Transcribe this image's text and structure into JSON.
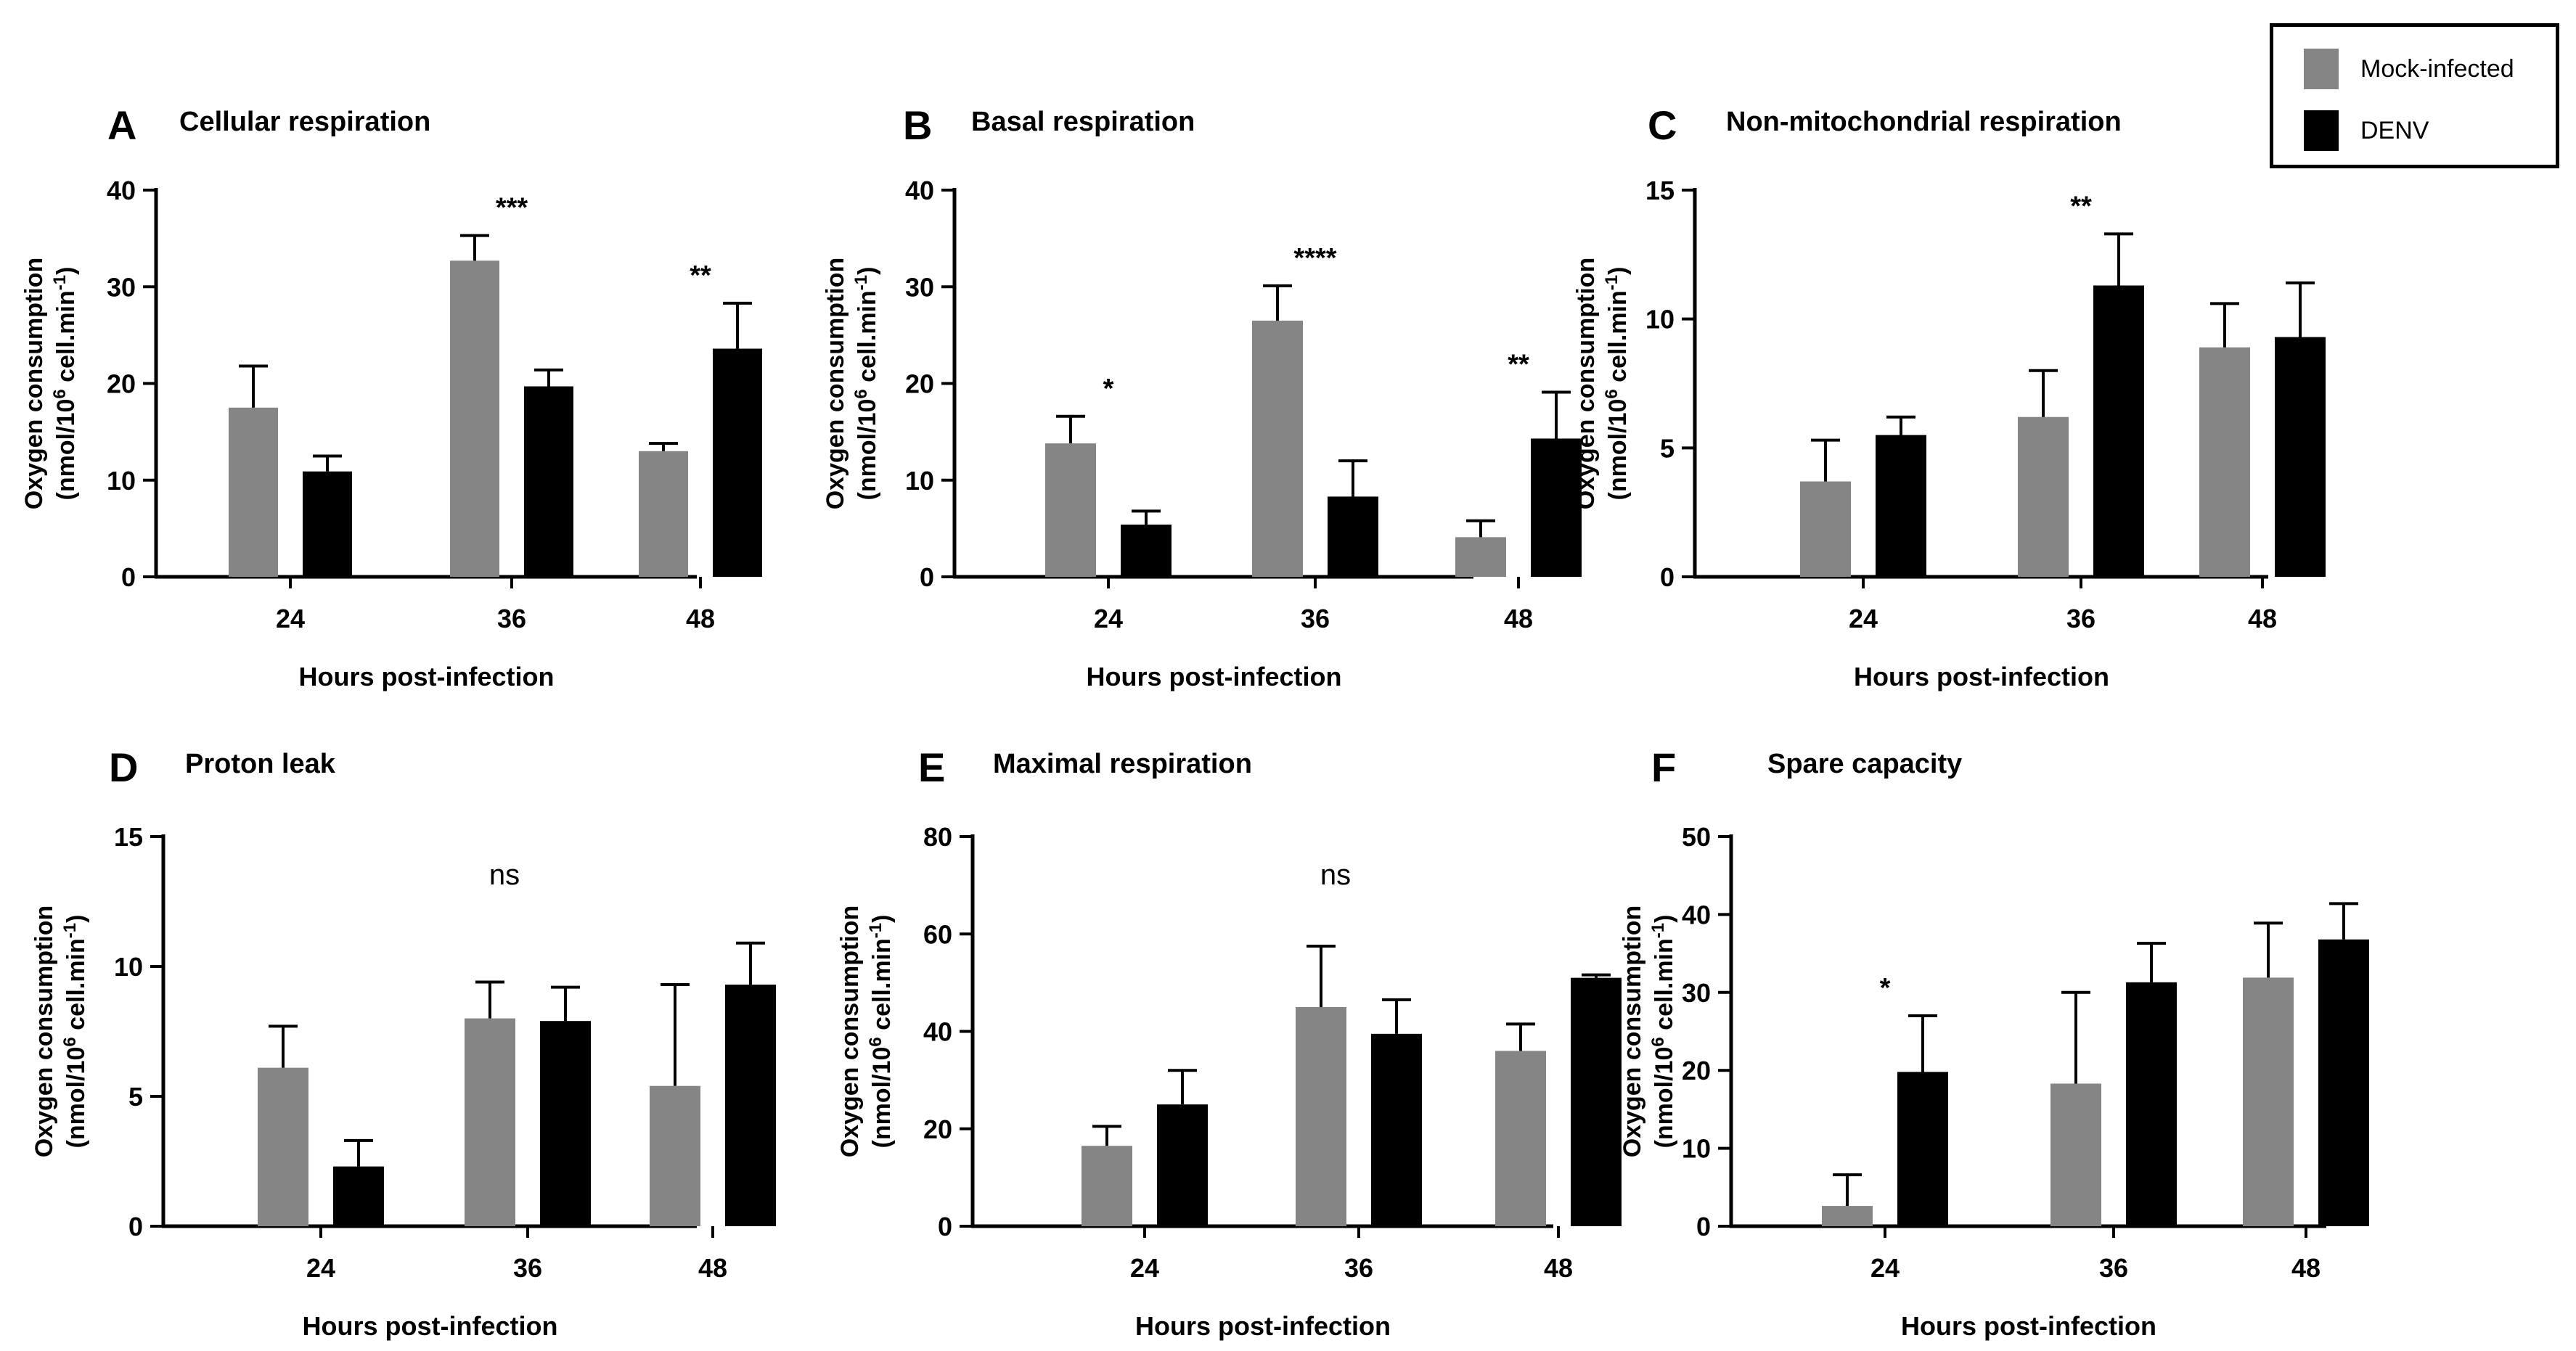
{
  "legend": {
    "mock_label": "Mock-infected",
    "denv_label": "DENV"
  },
  "colors": {
    "mock": "#858585",
    "denv": "#000000"
  },
  "chart_data": [
    {
      "type": "bar",
      "panel": "A",
      "title": "Cellular respiration",
      "categories": [
        "24",
        "36",
        "48"
      ],
      "series": [
        {
          "name": "Mock-infected",
          "values": [
            17.5,
            32.7,
            13.0
          ],
          "errors": [
            4.3,
            2.6,
            0.8
          ]
        },
        {
          "name": "DENV",
          "values": [
            10.9,
            19.7,
            23.6
          ],
          "errors": [
            1.6,
            1.7,
            4.7
          ]
        }
      ],
      "ylim": [
        0,
        40
      ],
      "yticks": [
        "0",
        "10",
        "20",
        "30",
        "40"
      ],
      "xlabel": "Hours post-infection",
      "ylabel": "Oxygen consumption",
      "ylabel_unit": {
        "prefix": "(nmol/10",
        "sup1": "6",
        "mid": " cell.min",
        "sup2": "-1",
        "suffix": ")"
      },
      "annotations": [
        {
          "text": "***",
          "group": 1
        },
        {
          "text": "**",
          "group": 2
        }
      ]
    },
    {
      "type": "bar",
      "panel": "B",
      "title": "Basal respiration",
      "categories": [
        "24",
        "36",
        "48"
      ],
      "series": [
        {
          "name": "Mock-infected",
          "values": [
            13.8,
            26.5,
            4.1
          ],
          "errors": [
            2.8,
            3.6,
            1.7
          ]
        },
        {
          "name": "DENV",
          "values": [
            5.4,
            8.3,
            14.3
          ],
          "errors": [
            1.4,
            3.7,
            4.8
          ]
        }
      ],
      "ylim": [
        0,
        40
      ],
      "yticks": [
        "0",
        "10",
        "20",
        "30",
        "40"
      ],
      "xlabel": "Hours post-infection",
      "ylabel": "Oxygen consumption",
      "ylabel_unit": {
        "prefix": "(nmol/10",
        "sup1": "6",
        "mid": " cell.min",
        "sup2": "-1",
        "suffix": ")"
      },
      "annotations": [
        {
          "text": "*",
          "group": 0
        },
        {
          "text": "****",
          "group": 1
        },
        {
          "text": "**",
          "group": 2
        }
      ]
    },
    {
      "type": "bar",
      "panel": "C",
      "title": "Non-mitochondrial  respiration",
      "categories": [
        "24",
        "36",
        "48"
      ],
      "series": [
        {
          "name": "Mock-infected",
          "values": [
            3.7,
            6.2,
            8.9
          ],
          "errors": [
            1.6,
            1.8,
            1.7
          ]
        },
        {
          "name": "DENV",
          "values": [
            5.5,
            11.3,
            9.3
          ],
          "errors": [
            0.7,
            2.0,
            2.1
          ]
        }
      ],
      "ylim": [
        0,
        15
      ],
      "yticks": [
        "0",
        "5",
        "10",
        "15"
      ],
      "xlabel": "Hours post-infection",
      "ylabel": "Oxygen consumption",
      "ylabel_unit": {
        "prefix": "(nmol/10",
        "sup1": "6",
        "mid": " cell.min",
        "sup2": "-1",
        "suffix": ")"
      },
      "annotations": [
        {
          "text": "**",
          "group": 1
        }
      ]
    },
    {
      "type": "bar",
      "panel": "D",
      "title": "Proton leak",
      "categories": [
        "24",
        "36",
        "48"
      ],
      "series": [
        {
          "name": "Mock-infected",
          "values": [
            6.1,
            8.0,
            5.4
          ],
          "errors": [
            1.6,
            1.4,
            3.9
          ]
        },
        {
          "name": "DENV",
          "values": [
            2.3,
            7.9,
            9.3
          ],
          "errors": [
            1.0,
            1.3,
            1.6
          ]
        }
      ],
      "ylim": [
        0,
        15
      ],
      "yticks": [
        "0",
        "5",
        "10",
        "15"
      ],
      "xlabel": "Hours post-infection",
      "ylabel": "Oxygen consumption",
      "ylabel_unit": {
        "prefix": "(nmol/10",
        "sup1": "6",
        "mid": " cell.min",
        "sup2": "-1",
        "suffix": ")"
      },
      "annotations": [
        {
          "text": "ns",
          "group": "center"
        }
      ]
    },
    {
      "type": "bar",
      "panel": "E",
      "title": "Maximal respiration",
      "categories": [
        "24",
        "36",
        "48"
      ],
      "series": [
        {
          "name": "Mock-infected",
          "values": [
            16.5,
            45.0,
            36.0
          ],
          "errors": [
            4.0,
            12.5,
            5.5
          ]
        },
        {
          "name": "DENV",
          "values": [
            25.0,
            39.5,
            51.0
          ],
          "errors": [
            7.0,
            7.0,
            0.6
          ]
        }
      ],
      "ylim": [
        0,
        80
      ],
      "yticks": [
        "0",
        "20",
        "40",
        "60",
        "80"
      ],
      "xlabel": "Hours post-infection",
      "ylabel": "Oxygen consumption",
      "ylabel_unit": {
        "prefix": "(nmol/10",
        "sup1": "6",
        "mid": " cell.min",
        "sup2": "-1",
        "suffix": ")"
      },
      "annotations": [
        {
          "text": "ns",
          "group": "center"
        }
      ]
    },
    {
      "type": "bar",
      "panel": "F",
      "title": "Spare capacity",
      "categories": [
        "24",
        "36",
        "48"
      ],
      "series": [
        {
          "name": "Mock-infected",
          "values": [
            2.6,
            18.3,
            31.9
          ],
          "errors": [
            4.0,
            11.7,
            7.0
          ]
        },
        {
          "name": "DENV",
          "values": [
            19.8,
            31.3,
            36.8
          ],
          "errors": [
            7.2,
            5.0,
            4.6
          ]
        }
      ],
      "ylim": [
        0,
        50
      ],
      "yticks": [
        "0",
        "10",
        "20",
        "30",
        "40",
        "50"
      ],
      "xlabel": "Hours post-infection",
      "ylabel": "Oxygen consumption",
      "ylabel_unit": {
        "prefix": "(nmol/10",
        "sup1": "6",
        "mid": " cell.min",
        "sup2": "-1",
        "suffix": ")"
      },
      "annotations": [
        {
          "text": "*",
          "group": 0
        }
      ]
    }
  ]
}
